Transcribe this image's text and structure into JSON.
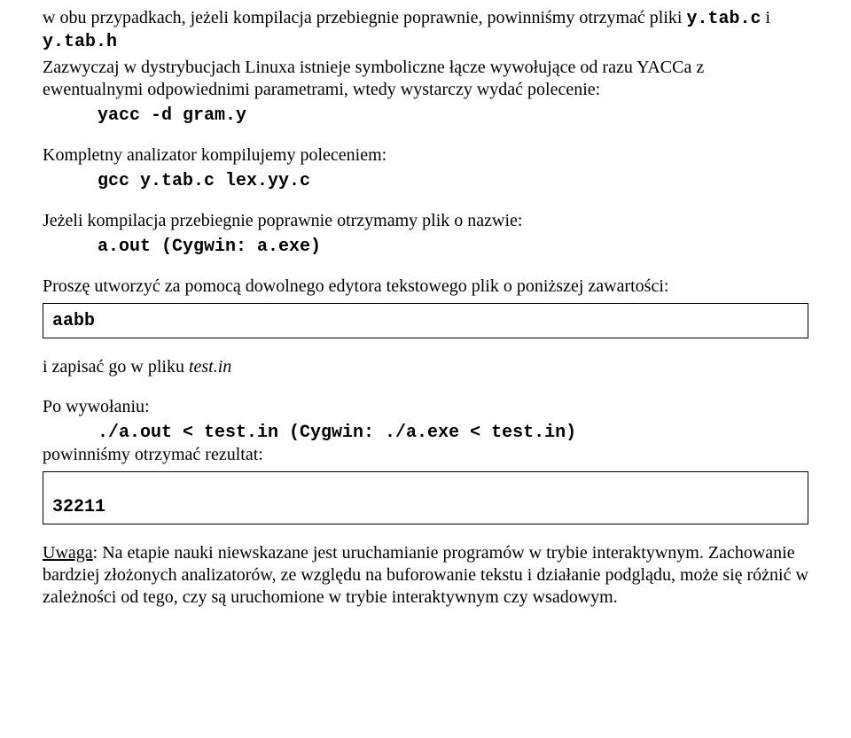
{
  "p1": {
    "text_a": "w obu przypadkach, jeżeli kompilacja przebiegnie poprawnie, powinniśmy otrzymać pliki ",
    "file1": "y.tab.c",
    "text_b": " i ",
    "file2": "y.tab.h"
  },
  "p2": {
    "text": "Zazwyczaj w dystrybucjach Linuxa istnieje symboliczne łącze wywołujące od razu YACCa z ewentualnymi odpowiednimi parametrami, wtedy wystarczy wydać polecenie:",
    "cmd": "yacc -d gram.y"
  },
  "p3": {
    "text": "Kompletny analizator kompilujemy poleceniem:",
    "cmd": "gcc y.tab.c lex.yy.c"
  },
  "p4": {
    "text": "Jeżeli kompilacja przebiegnie poprawnie otrzymamy plik o nazwie:",
    "cmd": "a.out (Cygwin: a.exe)"
  },
  "p5": {
    "text": "Proszę utworzyć za pomocą dowolnego edytora tekstowego plik o poniższej zawartości:"
  },
  "box1": {
    "content": "aabb"
  },
  "p6": {
    "text_a": "i zapisać go w pliku ",
    "file_it": "test.in"
  },
  "p7": {
    "label": "Po wywołaniu:",
    "cmd": "./a.out < test.in (Cygwin: ./a.exe < test.in)",
    "after": "powinniśmy otrzymać rezultat:"
  },
  "box2": {
    "content": "32211"
  },
  "p8": {
    "uw_label": "Uwaga",
    "uw_rest": ": Na etapie nauki niewskazane jest uruchamianie programów w trybie interaktywnym. Zachowanie bardziej złożonych analizatorów, ze względu na buforowanie tekstu i działanie podglądu, może się różnić w zależności od tego, czy są uruchomione w trybie interaktywnym czy wsadowym."
  }
}
